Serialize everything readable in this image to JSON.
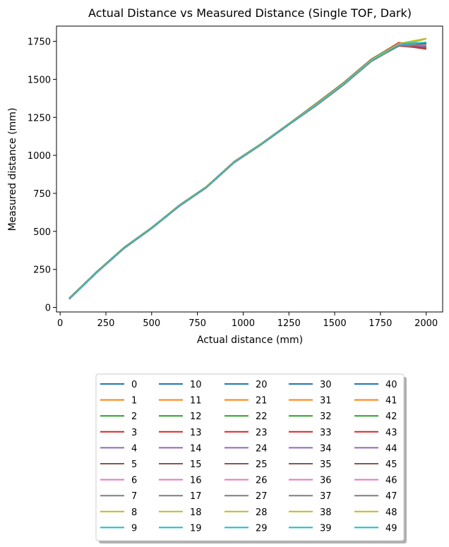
{
  "chart_data": {
    "type": "line",
    "title": "Actual Distance vs Measured Distance (Single TOF, Dark)",
    "xlabel": "Actual distance (mm)",
    "ylabel": "Measured distance (mm)",
    "xlim": [
      -20,
      2090
    ],
    "ylim": [
      -30,
      1850
    ],
    "xticks": [
      0,
      250,
      500,
      750,
      1000,
      1250,
      1500,
      1750,
      2000
    ],
    "yticks": [
      0,
      250,
      500,
      750,
      1000,
      1250,
      1500,
      1750
    ],
    "grid": false,
    "legend_position": "below plot, 5 columns",
    "x": [
      50,
      200,
      350,
      500,
      650,
      800,
      950,
      1100,
      1250,
      1400,
      1550,
      1700,
      1850,
      2000
    ],
    "base_y": [
      58,
      232,
      392,
      522,
      668,
      792,
      955,
      1075,
      1205,
      1335,
      1472,
      1625,
      1730,
      1720
    ],
    "end_values": [
      1738,
      1722,
      1715,
      1700,
      1715,
      1705,
      1725,
      1730,
      1770,
      1740,
      1738,
      1720,
      1712,
      1698,
      1718,
      1708,
      1722,
      1728,
      1765,
      1742,
      1740,
      1724,
      1716,
      1702,
      1714,
      1706,
      1724,
      1732,
      1768,
      1741,
      1736,
      1721,
      1714,
      1699,
      1716,
      1707,
      1723,
      1729,
      1767,
      1743,
      1739,
      1723,
      1717,
      1701,
      1715,
      1704,
      1726,
      1731,
      1769,
      1744
    ],
    "series_names": [
      "0",
      "1",
      "2",
      "3",
      "4",
      "5",
      "6",
      "7",
      "8",
      "9",
      "10",
      "11",
      "12",
      "13",
      "14",
      "15",
      "16",
      "17",
      "18",
      "19",
      "20",
      "21",
      "22",
      "23",
      "24",
      "25",
      "26",
      "27",
      "28",
      "29",
      "30",
      "31",
      "32",
      "33",
      "34",
      "35",
      "36",
      "37",
      "38",
      "39",
      "40",
      "41",
      "42",
      "43",
      "44",
      "45",
      "46",
      "47",
      "48",
      "49"
    ]
  },
  "colors": [
    "#1f77b4",
    "#ff7f0e",
    "#2ca02c",
    "#d62728",
    "#9467bd",
    "#8c564b",
    "#e377c2",
    "#7f7f7f",
    "#bcbd22",
    "#17becf"
  ]
}
